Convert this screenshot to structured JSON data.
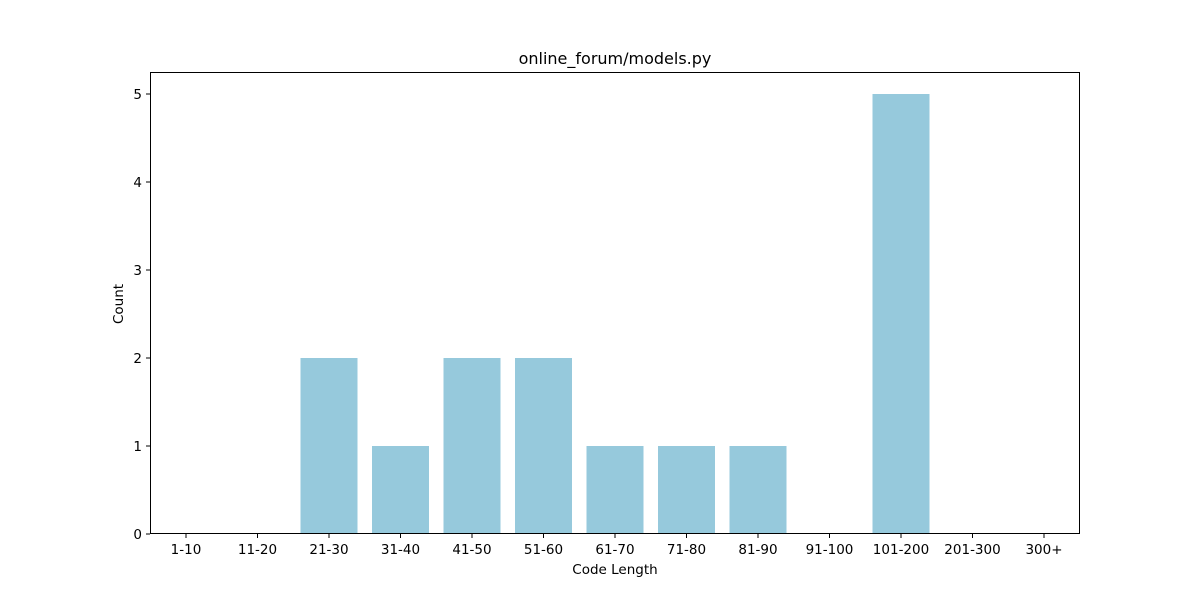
{
  "chart_data": {
    "type": "bar",
    "title": "online_forum/models.py",
    "xlabel": "Code Length",
    "ylabel": "Count",
    "categories": [
      "1-10",
      "11-20",
      "21-30",
      "31-40",
      "41-50",
      "51-60",
      "61-70",
      "71-80",
      "81-90",
      "91-100",
      "101-200",
      "201-300",
      "300+"
    ],
    "values": [
      0,
      0,
      2,
      1,
      2,
      2,
      1,
      1,
      1,
      0,
      5,
      0,
      0
    ],
    "ylim": [
      0,
      5.25
    ],
    "yticks": [
      0,
      1,
      2,
      3,
      4,
      5
    ],
    "grid": false,
    "bar_color": "#96c9dc"
  }
}
